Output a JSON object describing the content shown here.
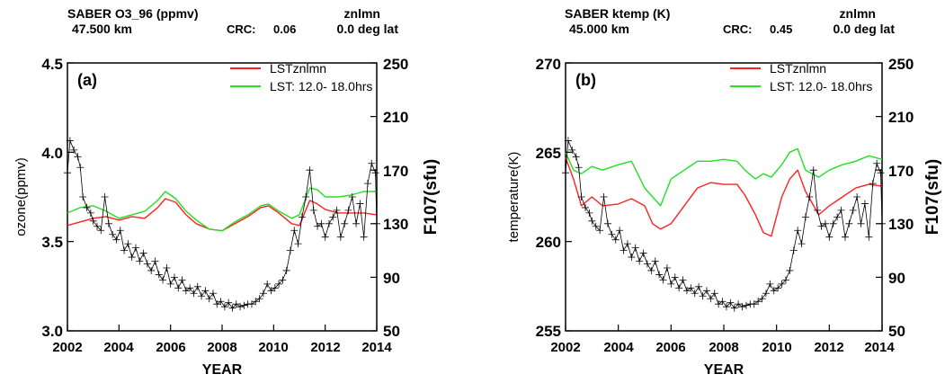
{
  "chart_data": [
    {
      "type": "line",
      "panel_label": "(a)",
      "header": {
        "title": "SABER O3_96 (ppmv)",
        "altitude": "47.500 km",
        "mode": "znlmn",
        "crc_label": "CRC:",
        "crc_value": "0.06",
        "latitude": "0.0 deg lat"
      },
      "xlabel": "YEAR",
      "ylabel": "ozone(ppmv)",
      "y2label": "F107(sfu)",
      "xlim": [
        2002,
        2014
      ],
      "ylim": [
        3.0,
        4.5
      ],
      "y2lim": [
        50,
        250
      ],
      "x_ticks": [
        "2002",
        "2004",
        "2006",
        "2008",
        "2010",
        "2012",
        "2014"
      ],
      "y_ticks": [
        "3.0",
        "3.5",
        "4.0",
        "4.5"
      ],
      "y2_ticks": [
        "50",
        "90",
        "130",
        "170",
        "210",
        "250"
      ],
      "legend": [
        {
          "label": "LSTznlmn",
          "color": "#ff2020"
        },
        {
          "label": "LST: 12.0- 18.0hrs",
          "color": "#22e022"
        }
      ],
      "series": [
        {
          "name": "LSTznlmn",
          "color": "#ff2020",
          "axis": "left",
          "x": [
            2002.0,
            2002.5,
            2003.0,
            2003.5,
            2004.0,
            2004.5,
            2005.0,
            2005.5,
            2005.8,
            2006.2,
            2006.6,
            2007.0,
            2007.5,
            2008.0,
            2008.5,
            2009.0,
            2009.5,
            2009.8,
            2010.2,
            2010.7,
            2011.0,
            2011.4,
            2011.7,
            2012.0,
            2012.5,
            2013.0,
            2013.5,
            2014.0
          ],
          "y": [
            3.59,
            3.61,
            3.63,
            3.64,
            3.62,
            3.64,
            3.63,
            3.69,
            3.74,
            3.72,
            3.65,
            3.6,
            3.57,
            3.56,
            3.6,
            3.64,
            3.69,
            3.7,
            3.66,
            3.6,
            3.59,
            3.73,
            3.71,
            3.68,
            3.66,
            3.66,
            3.66,
            3.65
          ]
        },
        {
          "name": "LST: 12.0- 18.0hrs",
          "color": "#22e022",
          "axis": "left",
          "x": [
            2002.0,
            2002.5,
            2003.0,
            2003.5,
            2004.0,
            2004.5,
            2005.0,
            2005.5,
            2005.8,
            2006.2,
            2006.6,
            2007.0,
            2007.5,
            2008.0,
            2008.5,
            2009.0,
            2009.5,
            2009.8,
            2010.2,
            2010.7,
            2011.0,
            2011.4,
            2011.7,
            2012.0,
            2012.5,
            2013.0,
            2013.5,
            2014.0
          ],
          "y": [
            3.66,
            3.69,
            3.7,
            3.67,
            3.63,
            3.65,
            3.67,
            3.73,
            3.78,
            3.74,
            3.67,
            3.62,
            3.57,
            3.56,
            3.61,
            3.65,
            3.7,
            3.71,
            3.67,
            3.63,
            3.65,
            3.8,
            3.79,
            3.75,
            3.75,
            3.76,
            3.78,
            3.78
          ]
        },
        {
          "name": "F107",
          "color": "#000000",
          "axis": "right",
          "marker": "+",
          "x": [
            2002.0,
            2002.1,
            2002.25,
            2002.4,
            2002.5,
            2002.6,
            2002.75,
            2002.9,
            2003.0,
            2003.15,
            2003.3,
            2003.45,
            2003.6,
            2003.75,
            2003.9,
            2004.05,
            2004.2,
            2004.35,
            2004.5,
            2004.65,
            2004.8,
            2004.95,
            2005.1,
            2005.25,
            2005.4,
            2005.55,
            2005.7,
            2005.85,
            2006.0,
            2006.15,
            2006.3,
            2006.45,
            2006.6,
            2006.75,
            2006.9,
            2007.05,
            2007.2,
            2007.35,
            2007.5,
            2007.65,
            2007.8,
            2007.95,
            2008.1,
            2008.25,
            2008.4,
            2008.55,
            2008.7,
            2008.85,
            2009.0,
            2009.15,
            2009.3,
            2009.45,
            2009.6,
            2009.75,
            2009.9,
            2010.05,
            2010.2,
            2010.35,
            2010.5,
            2010.65,
            2010.8,
            2010.95,
            2011.1,
            2011.25,
            2011.4,
            2011.55,
            2011.7,
            2011.85,
            2012.0,
            2012.15,
            2012.3,
            2012.45,
            2012.6,
            2012.75,
            2012.9,
            2013.05,
            2013.2,
            2013.35,
            2013.5,
            2013.65,
            2013.8,
            2013.95,
            2014.0
          ],
          "y": [
            168,
            192,
            185,
            180,
            172,
            150,
            142,
            138,
            132,
            128,
            125,
            150,
            130,
            122,
            118,
            125,
            110,
            115,
            105,
            112,
            102,
            108,
            100,
            95,
            102,
            92,
            88,
            97,
            85,
            90,
            82,
            88,
            80,
            82,
            78,
            83,
            76,
            80,
            74,
            78,
            70,
            72,
            68,
            71,
            67,
            70,
            68,
            69,
            70,
            70,
            72,
            74,
            78,
            85,
            80,
            82,
            85,
            88,
            95,
            110,
            125,
            115,
            135,
            150,
            170,
            140,
            128,
            130,
            120,
            130,
            135,
            140,
            120,
            130,
            140,
            150,
            130,
            145,
            120,
            160,
            175,
            168,
            130
          ]
        }
      ]
    },
    {
      "type": "line",
      "panel_label": "(b)",
      "header": {
        "title": "SABER ktemp (K)",
        "altitude": "45.000 km",
        "mode": "znlmn",
        "crc_label": "CRC:",
        "crc_value": "0.45",
        "latitude": "0.0 deg lat"
      },
      "xlabel": "YEAR",
      "ylabel": "temperature(K)",
      "y2label": "F107(sfu)",
      "xlim": [
        2002,
        2014
      ],
      "ylim": [
        255,
        270
      ],
      "y2lim": [
        50,
        250
      ],
      "x_ticks": [
        "2002",
        "2004",
        "2006",
        "2008",
        "2010",
        "2012",
        "2014"
      ],
      "y_ticks": [
        "255",
        "260",
        "265",
        "270"
      ],
      "y2_ticks": [
        "50",
        "90",
        "130",
        "170",
        "210",
        "250"
      ],
      "legend": [
        {
          "label": "LSTznlmn",
          "color": "#ff2020"
        },
        {
          "label": "LST: 12.0- 18.0hrs",
          "color": "#22e022"
        }
      ],
      "series": [
        {
          "name": "LSTznlmn",
          "color": "#ff2020",
          "axis": "left",
          "x": [
            2002.0,
            2002.3,
            2002.6,
            2003.0,
            2003.4,
            2004.0,
            2004.5,
            2005.0,
            2005.3,
            2005.6,
            2006.0,
            2006.5,
            2007.0,
            2007.5,
            2008.0,
            2008.5,
            2008.8,
            2009.2,
            2009.5,
            2009.8,
            2010.2,
            2010.5,
            2010.8,
            2011.1,
            2011.6,
            2012.0,
            2012.5,
            2013.0,
            2013.5,
            2014.0
          ],
          "y": [
            264.7,
            263.5,
            262.0,
            262.5,
            262.0,
            262.1,
            262.4,
            262.0,
            261.0,
            260.7,
            261.0,
            262.0,
            263.0,
            263.3,
            263.2,
            263.2,
            262.6,
            261.5,
            260.5,
            260.3,
            262.5,
            263.5,
            264.0,
            262.8,
            261.5,
            262.0,
            262.5,
            263.0,
            263.2,
            263.1
          ]
        },
        {
          "name": "LST: 12.0- 18.0hrs",
          "color": "#22e022",
          "axis": "left",
          "x": [
            2002.0,
            2002.3,
            2002.6,
            2003.0,
            2003.4,
            2004.0,
            2004.5,
            2005.0,
            2005.3,
            2005.6,
            2006.0,
            2006.5,
            2007.0,
            2007.5,
            2008.0,
            2008.5,
            2008.8,
            2009.2,
            2009.5,
            2009.8,
            2010.2,
            2010.5,
            2010.8,
            2011.1,
            2011.6,
            2012.0,
            2012.5,
            2013.0,
            2013.5,
            2014.0
          ],
          "y": [
            265.0,
            264.0,
            263.8,
            264.2,
            264.0,
            264.3,
            264.5,
            263.0,
            262.5,
            262.0,
            263.5,
            264.0,
            264.5,
            264.5,
            264.6,
            264.5,
            264.0,
            263.5,
            263.8,
            263.6,
            264.3,
            265.0,
            265.2,
            264.0,
            263.6,
            264.0,
            264.3,
            264.5,
            264.8,
            264.6
          ]
        },
        {
          "name": "F107",
          "color": "#000000",
          "axis": "right",
          "marker": "+",
          "x": [
            2002.0,
            2002.1,
            2002.25,
            2002.4,
            2002.5,
            2002.6,
            2002.75,
            2002.9,
            2003.0,
            2003.15,
            2003.3,
            2003.45,
            2003.6,
            2003.75,
            2003.9,
            2004.05,
            2004.2,
            2004.35,
            2004.5,
            2004.65,
            2004.8,
            2004.95,
            2005.1,
            2005.25,
            2005.4,
            2005.55,
            2005.7,
            2005.85,
            2006.0,
            2006.15,
            2006.3,
            2006.45,
            2006.6,
            2006.75,
            2006.9,
            2007.05,
            2007.2,
            2007.35,
            2007.5,
            2007.65,
            2007.8,
            2007.95,
            2008.1,
            2008.25,
            2008.4,
            2008.55,
            2008.7,
            2008.85,
            2009.0,
            2009.15,
            2009.3,
            2009.45,
            2009.6,
            2009.75,
            2009.9,
            2010.05,
            2010.2,
            2010.35,
            2010.5,
            2010.65,
            2010.8,
            2010.95,
            2011.1,
            2011.25,
            2011.4,
            2011.55,
            2011.7,
            2011.85,
            2012.0,
            2012.15,
            2012.3,
            2012.45,
            2012.6,
            2012.75,
            2012.9,
            2013.05,
            2013.2,
            2013.35,
            2013.5,
            2013.65,
            2013.8,
            2013.95,
            2014.0
          ],
          "y": [
            168,
            192,
            185,
            180,
            172,
            150,
            142,
            138,
            132,
            128,
            125,
            150,
            130,
            122,
            118,
            125,
            110,
            115,
            105,
            112,
            102,
            108,
            100,
            95,
            102,
            92,
            88,
            97,
            85,
            90,
            82,
            88,
            80,
            82,
            78,
            83,
            76,
            80,
            74,
            78,
            70,
            72,
            68,
            71,
            67,
            70,
            68,
            69,
            70,
            70,
            72,
            74,
            78,
            85,
            80,
            82,
            85,
            88,
            95,
            110,
            125,
            115,
            135,
            150,
            170,
            140,
            128,
            130,
            120,
            130,
            135,
            140,
            120,
            130,
            140,
            150,
            130,
            145,
            120,
            160,
            175,
            168,
            130
          ]
        }
      ]
    }
  ]
}
